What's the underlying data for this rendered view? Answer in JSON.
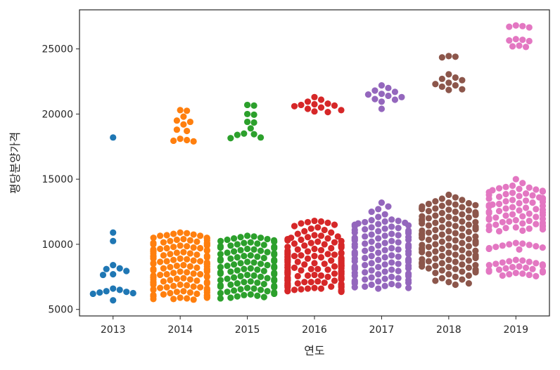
{
  "chart_data": {
    "type": "scatter",
    "subtype": "swarm",
    "title": "",
    "xlabel": "연도",
    "ylabel": "평당분양가격",
    "categories": [
      "2013",
      "2014",
      "2015",
      "2016",
      "2017",
      "2018",
      "2019"
    ],
    "ylim": [
      4500,
      28000
    ],
    "yticks": [
      5000,
      10000,
      15000,
      20000,
      25000
    ],
    "grid": false,
    "legend": "none",
    "colors": [
      "#1f77b4",
      "#ff7f0e",
      "#2ca02c",
      "#d62728",
      "#9467bd",
      "#8c564b",
      "#e377c2"
    ],
    "series": [
      {
        "values": [
          18200,
          10900,
          10250,
          8400,
          8100,
          8150,
          7950,
          7700,
          7650,
          6600,
          6500,
          6400,
          6350,
          6300,
          6250,
          6200,
          5700
        ]
      },
      {
        "values": [
          20300,
          20250,
          19800,
          19500,
          19400,
          19200,
          18800,
          18700,
          18100,
          18000,
          17950,
          17900,
          10900,
          10850,
          10800,
          10750,
          10700,
          10650,
          10500,
          10400,
          10300,
          10200,
          10100,
          10000,
          9900,
          9800,
          9700,
          9600,
          9500,
          9400,
          9300,
          9200,
          9100,
          9000,
          8900,
          8800,
          8700,
          8600,
          8500,
          8400,
          8300,
          8200,
          8100,
          8000,
          7900,
          7800,
          7700,
          7600,
          7500,
          7400,
          7300,
          7200,
          7100,
          7000,
          6900,
          6800,
          6700,
          6600,
          6500,
          6400,
          6300,
          6200,
          6100,
          6000,
          5900,
          5800,
          5750,
          5800,
          5900,
          6100,
          6300,
          6500,
          6700,
          6900,
          7100,
          7300,
          7500,
          7700,
          7900,
          8100,
          8300,
          8500,
          8700,
          8900,
          9100,
          9300,
          9500,
          9700,
          9900,
          10100,
          10300,
          10500,
          5850,
          6050,
          6250,
          6450,
          6650,
          6850,
          7050,
          7250,
          7450,
          7650,
          7850,
          8050,
          8250,
          8450,
          8650,
          8850,
          9050,
          9250,
          9450,
          9650,
          9850,
          10050,
          10250,
          10450,
          10650,
          5950,
          6150,
          6350,
          6550,
          6750,
          6950,
          7150,
          7350,
          7550,
          7750,
          7950,
          8150,
          8350,
          8550,
          8750,
          8950,
          9150,
          9350,
          9550,
          9750,
          9950,
          10150,
          10350
        ]
      },
      {
        "values": [
          20700,
          20650,
          20000,
          19950,
          19400,
          19350,
          18900,
          18500,
          18450,
          18400,
          18200,
          18150,
          10650,
          10600,
          10550,
          10500,
          10400,
          10300,
          10200,
          10100,
          10000,
          9900,
          9800,
          9700,
          9600,
          9500,
          9400,
          9300,
          9200,
          9100,
          9000,
          8900,
          8800,
          8700,
          8600,
          8500,
          8400,
          8300,
          8200,
          8100,
          8000,
          7900,
          7800,
          7700,
          7600,
          7500,
          7400,
          7300,
          7200,
          7100,
          7000,
          6900,
          6800,
          6700,
          6600,
          6500,
          6400,
          6300,
          6200,
          6100,
          6000,
          5900,
          5850,
          5950,
          6050,
          6150,
          6250,
          6350,
          6450,
          6550,
          6650,
          6750,
          6850,
          6950,
          7050,
          7150,
          7250,
          7350,
          7450,
          7550,
          7650,
          7750,
          7850,
          7950,
          8050,
          8150,
          8250,
          8350,
          8450,
          8550,
          8650,
          8750,
          8850,
          8950,
          9050,
          9150,
          9250,
          9350,
          9450,
          9550,
          9650,
          9750,
          9850,
          9950,
          10050,
          10150,
          10250,
          10350,
          10450
        ]
      },
      {
        "values": [
          21300,
          21100,
          20950,
          20800,
          20750,
          20700,
          20650,
          20600,
          20500,
          20400,
          20300,
          20200,
          20150,
          11800,
          11750,
          11700,
          11650,
          11600,
          11500,
          11400,
          11300,
          11200,
          11100,
          11000,
          10900,
          10800,
          10700,
          10600,
          10500,
          10400,
          10300,
          10200,
          10100,
          10000,
          9900,
          9800,
          9700,
          9600,
          9500,
          9400,
          9300,
          9200,
          9100,
          9000,
          8900,
          8800,
          8700,
          8600,
          8500,
          8400,
          8300,
          8200,
          8100,
          8000,
          7900,
          7800,
          7700,
          7600,
          7500,
          7400,
          7300,
          7200,
          7100,
          7000,
          6900,
          6800,
          6700,
          6600,
          6500,
          6400,
          6350,
          6450,
          6550,
          6650,
          6750,
          6850,
          6950,
          7050,
          7150,
          7250,
          7350,
          7450,
          7550,
          7650,
          7750,
          7850,
          7950,
          8050,
          8150,
          8250,
          8350,
          8450,
          8550,
          8650,
          8750,
          8850,
          8950,
          9050,
          9150,
          9250,
          9350,
          9450,
          9550,
          9650,
          9750,
          9850,
          9950,
          10050,
          10150,
          10250,
          10350,
          10450,
          10550,
          10650,
          6400,
          6500,
          6600,
          6700,
          6800,
          6900,
          7000,
          7100,
          7200,
          7300,
          7400,
          7500,
          7600,
          7700,
          7800,
          7900,
          8000,
          8100,
          8200,
          8300,
          8400,
          8500,
          8600,
          8700,
          8800,
          8900,
          9000,
          9100,
          9200,
          9300
        ]
      },
      {
        "values": [
          22200,
          22000,
          21800,
          21700,
          21550,
          21500,
          21400,
          21300,
          21150,
          21100,
          20950,
          20400,
          13200,
          12900,
          12700,
          12500,
          12300,
          12100,
          11900,
          11800,
          11700,
          11600,
          11500,
          11400,
          11300,
          11200,
          11100,
          11000,
          10900,
          10800,
          10700,
          10600,
          10500,
          10400,
          10300,
          10200,
          10100,
          10000,
          9900,
          9800,
          9700,
          9600,
          9500,
          9400,
          9300,
          9200,
          9100,
          9000,
          8900,
          8800,
          8700,
          8600,
          8500,
          8400,
          8300,
          8200,
          8100,
          8000,
          7900,
          7800,
          7700,
          7600,
          7500,
          7400,
          7300,
          7200,
          7100,
          7000,
          6900,
          6800,
          6700,
          6600,
          6650,
          6750,
          6850,
          6950,
          7050,
          7150,
          7250,
          7350,
          7450,
          7550,
          7650,
          7750,
          7850,
          7950,
          8050,
          8150,
          8250,
          8350,
          8450,
          8550,
          8650,
          8750,
          8850,
          8950,
          9050,
          9150,
          9250,
          9350,
          9450,
          9550,
          9650,
          9750,
          9850,
          9950,
          10050,
          10150,
          10250,
          10350,
          10450,
          10550,
          10650,
          10750,
          10850,
          10950,
          11050,
          11150,
          11250,
          11350,
          11450,
          11550,
          11650,
          11750,
          11850
        ]
      },
      {
        "values": [
          24450,
          24400,
          24350,
          23050,
          22800,
          22700,
          22600,
          22400,
          22300,
          22200,
          22100,
          21900,
          21850,
          13800,
          13600,
          13500,
          13400,
          13300,
          13200,
          13100,
          13000,
          12900,
          12800,
          12700,
          12600,
          12500,
          12400,
          12300,
          12200,
          12100,
          12000,
          11900,
          11800,
          11700,
          11600,
          11500,
          11400,
          11300,
          11200,
          11100,
          11000,
          10900,
          10800,
          10700,
          10600,
          10500,
          10400,
          10300,
          10200,
          10100,
          10000,
          9900,
          9800,
          9700,
          9600,
          9500,
          9400,
          9300,
          9200,
          9100,
          9000,
          8900,
          8800,
          8700,
          8600,
          8500,
          8400,
          8300,
          8200,
          8100,
          8000,
          7900,
          7800,
          7700,
          7600,
          7500,
          7400,
          7300,
          7200,
          7100,
          7000,
          6900,
          7850,
          7950,
          8050,
          8150,
          8250,
          8350,
          8450,
          8550,
          8650,
          8750,
          8850,
          8950,
          9050,
          9150,
          9250,
          9350,
          9450,
          9550,
          9650,
          9750,
          9850,
          9950,
          10050,
          10150,
          10250,
          10350,
          10450,
          10550,
          10650,
          10750,
          10850,
          10950,
          11050,
          11150,
          11250,
          11350,
          11450,
          11550,
          11650,
          11750,
          11850,
          11950,
          12050,
          12150,
          12250,
          12350,
          12450,
          12550,
          12650,
          12750,
          12850,
          12950,
          13050,
          13150
        ]
      },
      {
        "values": [
          26800,
          26750,
          26700,
          26650,
          25750,
          25700,
          25650,
          25600,
          25250,
          25200,
          25150,
          15000,
          14700,
          14500,
          14400,
          14350,
          14300,
          14200,
          14100,
          14000,
          13900,
          13800,
          13700,
          13600,
          13500,
          13400,
          13300,
          13200,
          13100,
          13000,
          12900,
          12800,
          12700,
          12600,
          12500,
          12400,
          12300,
          12200,
          12100,
          12000,
          11900,
          11800,
          11700,
          11600,
          11500,
          11400,
          11300,
          11200,
          11100,
          11000,
          10100,
          10000,
          9900,
          9800,
          9700,
          9600,
          8800,
          8700,
          8600,
          8500,
          8400,
          8300,
          8200,
          8100,
          8000,
          7900,
          7800,
          7700,
          7600,
          7550,
          7650,
          7750,
          7850,
          7950,
          8050,
          8150,
          8250,
          8350,
          8450,
          8550,
          8650,
          8750,
          9650,
          9750,
          9850,
          9950,
          10050,
          11050,
          11150,
          11250,
          11350,
          11450,
          11550,
          11650,
          11750,
          11850,
          11950,
          12050,
          12150,
          12250,
          12350,
          12450,
          12550,
          12650,
          12750,
          12850,
          12950,
          13050,
          13150,
          13250,
          13350,
          13450,
          13550,
          13650,
          13750,
          13850,
          13950,
          14050,
          14150,
          14250
        ]
      }
    ]
  }
}
